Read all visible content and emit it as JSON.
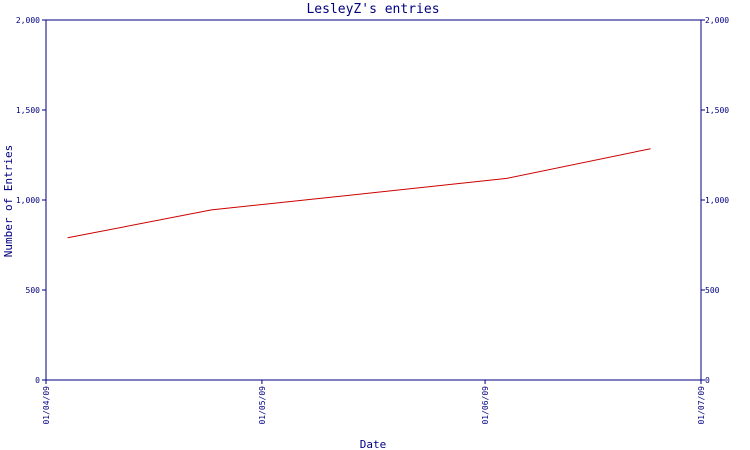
{
  "chart_data": {
    "type": "line",
    "title": "LesleyZ's entries",
    "xlabel": "Date",
    "ylabel": "Number of Entries",
    "x_ticks": [
      "01/04/09",
      "01/05/09",
      "01/06/09",
      "01/07/09"
    ],
    "y_ticks": [
      "0",
      "500",
      "1,000",
      "1,500",
      "2,000"
    ],
    "y_tick_values": [
      0,
      500,
      1000,
      1500,
      2000
    ],
    "ylim": [
      0,
      2000
    ],
    "xlim": [
      "2009-04-01",
      "2009-07-01"
    ],
    "grid": false,
    "colors": {
      "axis": "#000080",
      "line": "#cc0000",
      "text": "#000080"
    },
    "series": [
      {
        "x": [
          "2009-04-04",
          "2009-04-24",
          "2009-05-14",
          "2009-06-04",
          "2009-06-24"
        ],
        "y": [
          790,
          945,
          1030,
          1120,
          1285
        ]
      }
    ]
  }
}
